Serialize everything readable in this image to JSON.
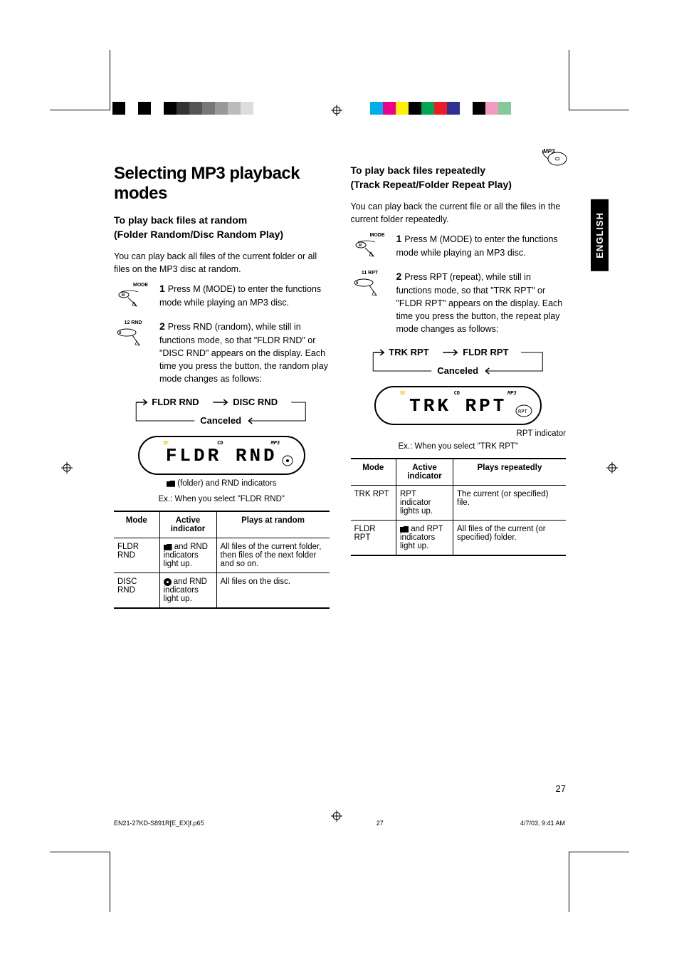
{
  "crop_bars": {
    "left_colors": [
      "#000000",
      "#ffffff",
      "#000000",
      "#ffffff",
      "#000000",
      "#333333",
      "#555555",
      "#777777",
      "#999999",
      "#bbbbbb",
      "#dddddd",
      "#ffffff"
    ],
    "right_colors": [
      "#00aeef",
      "#ec008c",
      "#fff200",
      "#000000",
      "#00a651",
      "#ed1c24",
      "#2e3192",
      "#ffffff",
      "#000000",
      "#f49ac1",
      "#82ca9c",
      "#ffffff"
    ]
  },
  "badge": {
    "label": "MP3"
  },
  "lang_tab": "ENGLISH",
  "page_number": "27",
  "footer": {
    "file": "EN21-27KD-S891R[E_EX]f.p65",
    "page": "27",
    "datetime": "4/7/03, 9:41 AM"
  },
  "title": "Selecting MP3 playback modes",
  "left": {
    "h2_line1": "To play back files at random",
    "h2_line2": "(Folder Random/Disc Random Play)",
    "intro": "You can play back all files of the current folder or all files on the MP3 disc at random.",
    "step1": {
      "icon_top": "MODE",
      "icon_btn": "M",
      "num": "1",
      "text": "Press M (MODE) to enter the functions mode while playing an MP3 disc."
    },
    "step2": {
      "icon_top": "12  RND",
      "icon_btn": "6",
      "num": "2",
      "text": "Press RND (random), while still in functions mode, so that \"FLDR RND\" or \"DISC RND\" appears on the display. Each time you press the button, the random play mode changes as follows:"
    },
    "flow": {
      "a": "FLDR RND",
      "b": "DISC RND",
      "c": "Canceled"
    },
    "lcd": {
      "top_left": "",
      "top_mid": "CD",
      "top_right": "MP3",
      "main": "FLDR  RND"
    },
    "caption_icons": "(folder) and RND indicators",
    "caption_ex": "Ex.: When you select \"FLDR RND\"",
    "table": {
      "headers": [
        "Mode",
        "Active indicator",
        "Plays at random"
      ],
      "rows": [
        {
          "mode": "FLDR RND",
          "ind_icon": "folder",
          "ind": " and RND indicators light up.",
          "plays": "All files of the current folder, then files of the next folder and so on."
        },
        {
          "mode": "DISC RND",
          "ind_icon": "disc",
          "ind": " and RND indicators light up.",
          "plays": "All files on the disc."
        }
      ]
    }
  },
  "right": {
    "h2_line1": "To play back files repeatedly",
    "h2_line2": "(Track Repeat/Folder Repeat Play)",
    "intro": "You can play back the current file or all the files in the current folder repeatedly.",
    "step1": {
      "icon_top": "MODE",
      "icon_btn": "M",
      "num": "1",
      "text": "Press M (MODE) to enter the functions mode while playing an MP3 disc."
    },
    "step2": {
      "icon_top": "11  RPT",
      "icon_btn": "5",
      "num": "2",
      "text": "Press RPT (repeat), while still in functions mode, so that \"TRK RPT\" or \"FLDR RPT\" appears on the display. Each time you press the button, the repeat play mode changes as follows:"
    },
    "flow": {
      "a": "TRK RPT",
      "b": "FLDR RPT",
      "c": "Canceled"
    },
    "lcd": {
      "top_left": "",
      "top_mid": "CD",
      "top_right": "MP3",
      "main": "TRK   RPT",
      "side": "RPT"
    },
    "caption_rpt": "RPT indicator",
    "caption_ex": "Ex.: When you select \"TRK RPT\"",
    "table": {
      "headers": [
        "Mode",
        "Active indicator",
        "Plays repeatedly"
      ],
      "rows": [
        {
          "mode": "TRK RPT",
          "ind_icon": "",
          "ind": "RPT indicator lights up.",
          "plays": "The current (or specified) file."
        },
        {
          "mode": "FLDR RPT",
          "ind_icon": "folder",
          "ind": " and RPT indicators light up.",
          "plays": "All files of the current (or specified) folder."
        }
      ]
    }
  }
}
